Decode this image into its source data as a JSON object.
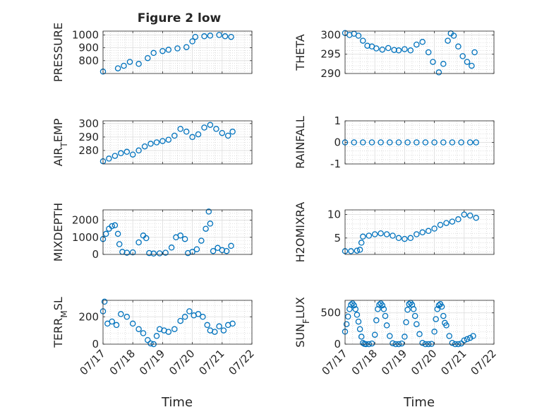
{
  "figure": {
    "title": "Figure 2 low",
    "xlabel": "Time",
    "xticks": [
      "07/17",
      "07/18",
      "07/19",
      "07/20",
      "07/21",
      "07/22"
    ],
    "marker_color": "#0072BD",
    "axis_color": "#262626",
    "grid_color": "#c8c8c8"
  },
  "chart_data": [
    {
      "type": "scatter",
      "ylabel": "PRESSURE",
      "ylim": [
        700,
        1030
      ],
      "yticks": [
        800,
        900,
        1000
      ],
      "grid": true,
      "x": [
        0.0,
        0.5,
        0.7,
        0.9,
        1.2,
        1.5,
        1.7,
        2.0,
        2.2,
        2.5,
        2.8,
        3.0,
        3.1,
        3.4,
        3.6,
        3.9,
        4.1,
        4.3
      ],
      "y": [
        715,
        740,
        760,
        790,
        775,
        820,
        860,
        875,
        885,
        895,
        905,
        950,
        985,
        990,
        995,
        1000,
        990,
        985
      ]
    },
    {
      "type": "scatter",
      "ylabel": "THETA",
      "ylim": [
        290,
        301
      ],
      "yticks": [
        290,
        295,
        300
      ],
      "grid": true,
      "x": [
        0.0,
        0.15,
        0.3,
        0.45,
        0.6,
        0.75,
        0.9,
        1.05,
        1.25,
        1.45,
        1.65,
        1.8,
        2.0,
        2.2,
        2.4,
        2.6,
        2.8,
        2.95,
        3.15,
        3.3,
        3.45,
        3.55,
        3.65,
        3.8,
        3.95,
        4.1,
        4.25,
        4.35
      ],
      "y": [
        300.5,
        300.0,
        300.3,
        299.8,
        298.5,
        297.2,
        297.0,
        296.5,
        296.2,
        296.6,
        296.1,
        296.0,
        296.3,
        296.0,
        297.5,
        298.2,
        295.5,
        293.0,
        290.3,
        292.5,
        298.5,
        300.4,
        299.8,
        297.0,
        294.5,
        293.0,
        292.0,
        295.5
      ]
    },
    {
      "type": "scatter",
      "ylabel": "AIR_T_EMP",
      "ylim": [
        270,
        302
      ],
      "yticks": [
        280,
        290,
        300
      ],
      "grid": true,
      "x": [
        0.0,
        0.2,
        0.4,
        0.6,
        0.8,
        1.0,
        1.2,
        1.4,
        1.6,
        1.8,
        2.0,
        2.2,
        2.4,
        2.6,
        2.8,
        3.0,
        3.2,
        3.4,
        3.6,
        3.8,
        4.0,
        4.2,
        4.35
      ],
      "y": [
        272,
        274,
        276,
        278,
        279,
        277,
        280,
        283,
        285,
        286,
        287,
        288,
        291,
        296,
        294,
        290,
        292,
        297,
        299,
        296,
        293,
        291,
        294
      ]
    },
    {
      "type": "scatter",
      "ylabel": "RAINFALL",
      "ylim": [
        -1,
        1
      ],
      "yticks": [
        -1,
        0,
        1
      ],
      "grid": true,
      "x": [
        0.0,
        0.3,
        0.6,
        0.9,
        1.2,
        1.5,
        1.8,
        2.1,
        2.4,
        2.7,
        3.0,
        3.3,
        3.6,
        3.9,
        4.2,
        4.4
      ],
      "y": [
        0,
        0,
        0,
        0,
        0,
        0,
        0,
        0,
        0,
        0,
        0,
        0,
        0,
        0,
        0,
        0
      ]
    },
    {
      "type": "scatter",
      "ylabel": "MIXDEPTH",
      "ylim": [
        0,
        2600
      ],
      "yticks": [
        0,
        1000,
        2000
      ],
      "grid": true,
      "x": [
        0.0,
        0.1,
        0.2,
        0.3,
        0.4,
        0.5,
        0.55,
        0.65,
        0.8,
        1.0,
        1.2,
        1.35,
        1.45,
        1.55,
        1.7,
        1.9,
        2.1,
        2.3,
        2.45,
        2.6,
        2.75,
        2.85,
        3.0,
        3.15,
        3.3,
        3.45,
        3.55,
        3.6,
        3.7,
        3.85,
        4.0,
        4.15,
        4.3
      ],
      "y": [
        900,
        1200,
        1500,
        1650,
        1700,
        1200,
        600,
        150,
        100,
        120,
        700,
        1100,
        950,
        80,
        50,
        60,
        100,
        400,
        1000,
        1100,
        900,
        80,
        150,
        300,
        800,
        1500,
        2500,
        1800,
        200,
        380,
        250,
        200,
        500
      ]
    },
    {
      "type": "scatter",
      "ylabel": "H2OMIXRA",
      "ylim": [
        1.5,
        11
      ],
      "yticks": [
        5,
        10
      ],
      "grid": true,
      "x": [
        0.0,
        0.2,
        0.4,
        0.5,
        0.55,
        0.6,
        0.8,
        1.0,
        1.2,
        1.4,
        1.6,
        1.8,
        2.0,
        2.2,
        2.4,
        2.6,
        2.8,
        3.0,
        3.2,
        3.4,
        3.6,
        3.8,
        4.0,
        4.2,
        4.4
      ],
      "y": [
        2.2,
        2.2,
        2.3,
        2.5,
        4.0,
        5.3,
        5.5,
        5.8,
        6.0,
        5.8,
        5.5,
        5.0,
        4.8,
        5.0,
        5.8,
        6.2,
        6.5,
        7.0,
        7.8,
        8.2,
        8.5,
        9.0,
        10.0,
        9.8,
        9.3
      ]
    },
    {
      "type": "scatter",
      "ylabel": "TERR_M_SL",
      "ylim": [
        0,
        320
      ],
      "yticks": [
        0,
        200
      ],
      "grid": true,
      "x": [
        0.0,
        0.05,
        0.15,
        0.3,
        0.45,
        0.6,
        0.8,
        1.0,
        1.2,
        1.35,
        1.5,
        1.6,
        1.7,
        1.8,
        1.9,
        2.05,
        2.2,
        2.4,
        2.6,
        2.75,
        2.9,
        3.05,
        3.2,
        3.35,
        3.5,
        3.6,
        3.75,
        3.9,
        4.05,
        4.2,
        4.35
      ],
      "y": [
        240,
        310,
        150,
        165,
        140,
        220,
        200,
        150,
        110,
        80,
        30,
        5,
        0,
        60,
        110,
        100,
        90,
        110,
        170,
        200,
        240,
        210,
        220,
        200,
        140,
        100,
        90,
        130,
        100,
        140,
        150
      ]
    },
    {
      "type": "scatter",
      "ylabel": "SUN_F_LUX",
      "ylim": [
        0,
        700
      ],
      "yticks": [
        0,
        500
      ],
      "grid": true,
      "x": [
        0.0,
        0.05,
        0.1,
        0.15,
        0.2,
        0.25,
        0.3,
        0.35,
        0.4,
        0.45,
        0.5,
        0.55,
        0.6,
        0.65,
        0.7,
        0.8,
        0.9,
        1.0,
        1.05,
        1.1,
        1.15,
        1.2,
        1.25,
        1.3,
        1.35,
        1.4,
        1.5,
        1.6,
        1.7,
        1.8,
        1.9,
        2.0,
        2.05,
        2.1,
        2.15,
        2.2,
        2.25,
        2.3,
        2.35,
        2.4,
        2.5,
        2.6,
        2.7,
        2.8,
        2.9,
        3.0,
        3.05,
        3.1,
        3.15,
        3.2,
        3.25,
        3.3,
        3.35,
        3.4,
        3.5,
        3.6,
        3.7,
        3.8,
        3.9,
        4.0,
        4.1,
        4.2,
        4.3
      ],
      "y": [
        200,
        320,
        440,
        560,
        630,
        650,
        620,
        560,
        470,
        360,
        240,
        120,
        20,
        5,
        0,
        0,
        10,
        150,
        380,
        560,
        630,
        650,
        620,
        560,
        450,
        300,
        130,
        15,
        0,
        0,
        10,
        120,
        350,
        550,
        640,
        660,
        630,
        560,
        450,
        320,
        160,
        20,
        0,
        0,
        5,
        200,
        400,
        560,
        620,
        640,
        600,
        450,
        340,
        300,
        130,
        20,
        0,
        0,
        10,
        60,
        80,
        100,
        130
      ]
    }
  ]
}
